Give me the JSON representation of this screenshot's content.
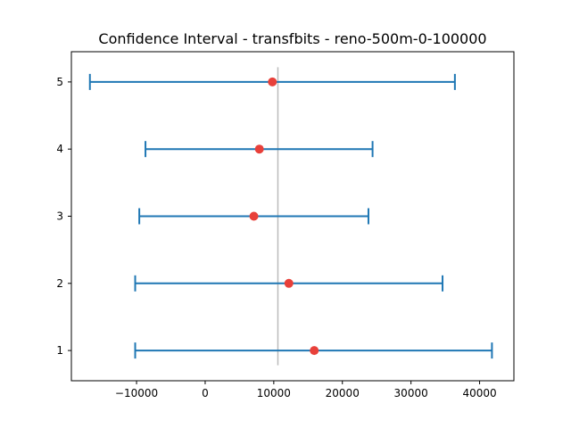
{
  "chart_data": {
    "type": "errorbar",
    "title": "Confidence Interval - transfbits - reno-500m-0-100000",
    "xlabel": "",
    "ylabel": "",
    "xlim": [
      -19500,
      45000
    ],
    "ylim": [
      0.55,
      5.45
    ],
    "xticks": [
      -10000,
      0,
      10000,
      20000,
      30000,
      40000
    ],
    "xtick_labels": [
      "−10000",
      "0",
      "10000",
      "20000",
      "30000",
      "40000"
    ],
    "yticks": [
      1,
      2,
      3,
      4,
      5
    ],
    "ytick_labels": [
      "1",
      "2",
      "3",
      "4",
      "5"
    ],
    "reference_line": {
      "x": 10600,
      "color": "#bbbbbb"
    },
    "series": [
      {
        "points": [
          {
            "y": 1,
            "mean": 15900,
            "lower": -10200,
            "upper": 41800
          },
          {
            "y": 2,
            "mean": 12200,
            "lower": -10200,
            "upper": 34600
          },
          {
            "y": 3,
            "mean": 7100,
            "lower": -9600,
            "upper": 23800
          },
          {
            "y": 4,
            "mean": 7900,
            "lower": -8700,
            "upper": 24400
          },
          {
            "y": 5,
            "mean": 9800,
            "lower": -16800,
            "upper": 36400
          }
        ],
        "bar_color": "#1f77b4",
        "marker_color": "#e8403a"
      }
    ],
    "grid": false,
    "legend": "none"
  }
}
